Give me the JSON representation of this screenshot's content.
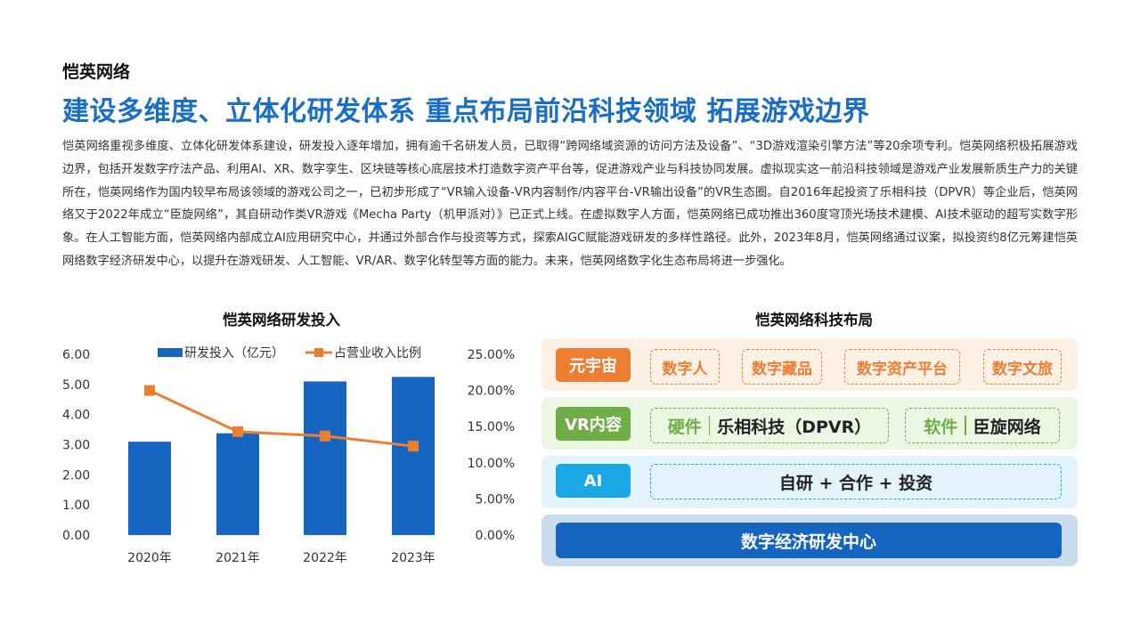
{
  "header": {
    "company": "恺英网络",
    "headline": "建设多维度、立体化研发体系 重点布局前沿科技领域 拓展游戏边界"
  },
  "body_text": "恺英网络重视多维度、立体化研发体系建设，研发投入逐年增加，拥有逾千名研发人员，已取得“跨网络域资源的访问方法及设备”、“3D游戏渲染引擎方法”等20余项专利。恺英网络积极拓展游戏边界，包括开发数字疗法产品、利用AI、XR、数字孪生、区块链等核心底层技术打造数字资产平台等，促进游戏产业与科技协同发展。虚拟现实这一前沿科技领域是游戏产业发展新质生产力的关键所在，恺英网络作为国内较早布局该领域的游戏公司之一，已初步形成了“VR输入设备-VR内容制作/内容平台-VR输出设备”的VR生态圈。自2016年起投资了乐相科技（DPVR）等企业后，恺英网络又于2022年成立“臣旋网络”，其自研动作类VR游戏《Mecha Party（机甲派对）》已正式上线。在虚拟数字人方面，恺英网络已成功推出360度穹顶光场技术建模、AI技术驱动的超写实数字形象。在人工智能方面，恺英网络内部成立AI应用研究中心，并通过外部合作与投资等方式，探索AIGC赋能游戏研发的多样性路径。此外，2023年8月，恺英网络通过议案，拟投资约8亿元筹建恺英网络数字经济研发中心，以提升在游戏研发、人工智能、VR/AR、数字化转型等方面的能力。未来，恺英网络数字化生态布局将进一步强化。",
  "chart_data": {
    "type": "bar",
    "title": "恺英网络研发投入",
    "categories": [
      "2020年",
      "2021年",
      "2022年",
      "2023年"
    ],
    "series": [
      {
        "name": "研发投入（亿元）",
        "type": "bar",
        "axis": "left",
        "color": "#1565c0",
        "values": [
          3.1,
          3.38,
          5.1,
          5.25
        ]
      },
      {
        "name": "占营业收入比例",
        "type": "line",
        "axis": "right",
        "color": "#ed7d31",
        "values": [
          20.0,
          14.3,
          13.7,
          12.3
        ]
      }
    ],
    "y_left": {
      "ticks": [
        "6.00",
        "5.00",
        "4.00",
        "3.00",
        "2.00",
        "1.00",
        "0.00"
      ],
      "lim": [
        0,
        6
      ]
    },
    "y_right": {
      "ticks": [
        "25.00%",
        "20.00%",
        "15.00%",
        "10.00%",
        "5.00%",
        "0.00%"
      ],
      "lim": [
        0,
        25
      ]
    },
    "legend": "top",
    "grid": false
  },
  "tech": {
    "title": "恺英网络科技布局",
    "rows": [
      {
        "label": "元宇宙",
        "items": [
          "数字人",
          "数字藏品",
          "数字资产平台",
          "数字文旅"
        ]
      },
      {
        "label": "VR内容",
        "groups": [
          {
            "k": "硬件",
            "v": "乐相科技（DPVR）"
          },
          {
            "k": "软件",
            "v": "臣旋网络"
          }
        ]
      },
      {
        "label": "AI",
        "text": "自研 + 合作 + 投资"
      },
      {
        "center": "数字经济研发中心"
      }
    ]
  },
  "colors": {
    "headline": "#1a6fc4",
    "bar": "#1565c0",
    "line": "#ed7d31",
    "metaverse": "#ed7d31",
    "vr": "#70ad47",
    "ai": "#1aa9e6"
  }
}
